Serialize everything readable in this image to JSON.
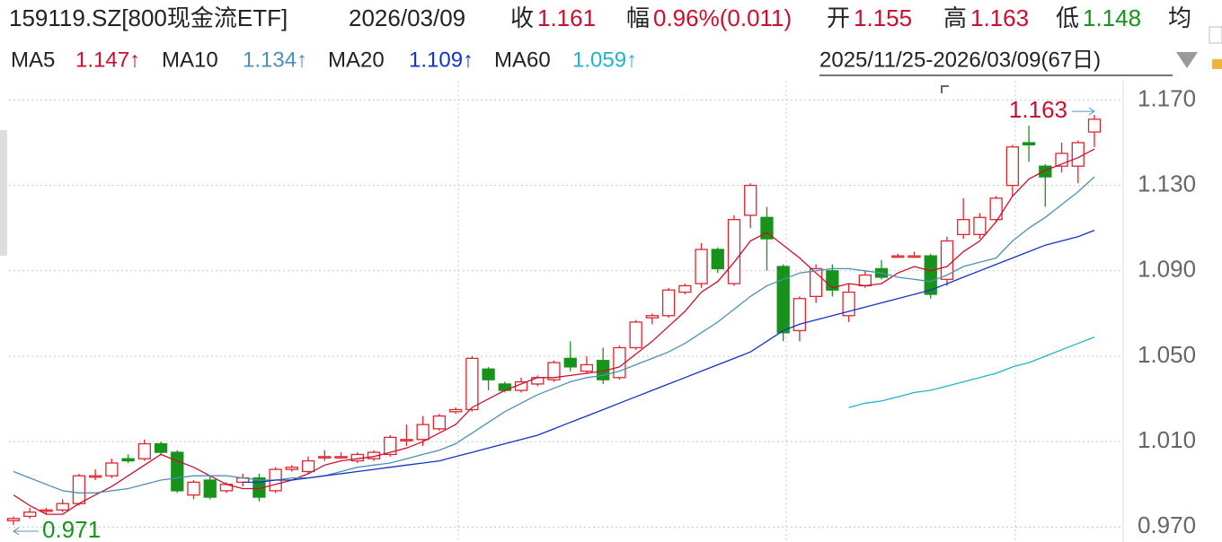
{
  "header": {
    "symbol": "159119.SZ[800现金流ETF]",
    "date": "2026/03/09",
    "close_label": "收",
    "close": "1.161",
    "change_label": "幅",
    "change": "0.96%(0.011)",
    "open_label": "开",
    "open": "1.155",
    "high_label": "高",
    "high": "1.163",
    "low_label": "低",
    "low": "1.148",
    "avg_label": "均",
    "range": "2025/11/25-2026/03/09(67日)"
  },
  "chart_data": {
    "type": "candlestick",
    "up_color": "#e0242c",
    "down_color": "#17931c",
    "open": [
      0.973,
      0.975,
      0.978,
      0.978,
      0.981,
      0.994,
      0.994,
      1.002,
      1.002,
      1.009,
      1.005,
      0.985,
      0.992,
      0.987,
      0.991,
      0.993,
      0.987,
      0.997,
      0.996,
      1.003,
      1.003,
      1.001,
      1.002,
      1.004,
      1.011,
      1.011,
      1.016,
      1.024,
      1.025,
      1.044,
      1.037,
      1.034,
      1.037,
      1.039,
      1.049,
      1.043,
      1.048,
      1.04,
      1.054,
      1.068,
      1.069,
      1.08,
      1.084,
      1.1,
      1.084,
      1.116,
      1.115,
      1.092,
      1.062,
      1.078,
      1.09,
      1.069,
      1.083,
      1.091,
      1.097,
      1.097,
      1.097,
      1.086,
      1.107,
      1.107,
      1.114,
      1.13,
      1.15,
      1.139,
      1.139,
      1.139,
      1.155
    ],
    "high": [
      0.975,
      0.979,
      0.979,
      0.983,
      0.995,
      0.997,
      1.002,
      1.004,
      1.011,
      1.01,
      1.006,
      0.992,
      0.994,
      0.991,
      0.995,
      0.995,
      0.998,
      0.999,
      1.003,
      1.006,
      1.005,
      1.005,
      1.006,
      1.013,
      1.018,
      1.022,
      1.023,
      1.026,
      1.05,
      1.045,
      1.038,
      1.04,
      1.041,
      1.048,
      1.057,
      1.05,
      1.054,
      1.055,
      1.067,
      1.07,
      1.082,
      1.084,
      1.103,
      1.101,
      1.116,
      1.131,
      1.12,
      1.093,
      1.078,
      1.093,
      1.093,
      1.084,
      1.09,
      1.095,
      1.098,
      1.099,
      1.098,
      1.106,
      1.124,
      1.117,
      1.125,
      1.149,
      1.158,
      1.14,
      1.15,
      1.151,
      1.163
    ],
    "low": [
      0.971,
      0.974,
      0.976,
      0.977,
      0.98,
      0.992,
      0.993,
      1.0,
      1.001,
      1.004,
      0.986,
      0.983,
      0.983,
      0.986,
      0.989,
      0.982,
      0.986,
      0.996,
      0.995,
      1.001,
      1.002,
      1.0,
      1.001,
      1.003,
      1.008,
      1.008,
      1.015,
      1.023,
      1.024,
      1.034,
      1.033,
      1.033,
      1.036,
      1.038,
      1.043,
      1.042,
      1.037,
      1.039,
      1.053,
      1.065,
      1.068,
      1.079,
      1.082,
      1.089,
      1.083,
      1.11,
      1.09,
      1.057,
      1.057,
      1.075,
      1.078,
      1.066,
      1.082,
      1.086,
      1.096,
      1.096,
      1.077,
      1.083,
      1.105,
      1.105,
      1.113,
      1.125,
      1.141,
      1.12,
      1.136,
      1.131,
      1.148
    ],
    "close": [
      0.974,
      0.977,
      0.978,
      0.981,
      0.994,
      0.994,
      1.0,
      1.001,
      1.009,
      1.005,
      0.987,
      0.991,
      0.984,
      0.99,
      0.993,
      0.984,
      0.997,
      0.998,
      1.001,
      1.003,
      1.003,
      1.004,
      1.005,
      1.012,
      1.011,
      1.018,
      1.022,
      1.025,
      1.049,
      1.039,
      1.034,
      1.038,
      1.04,
      1.047,
      1.045,
      1.046,
      1.039,
      1.054,
      1.066,
      1.069,
      1.081,
      1.083,
      1.1,
      1.091,
      1.114,
      1.13,
      1.105,
      1.061,
      1.077,
      1.091,
      1.081,
      1.08,
      1.088,
      1.087,
      1.097,
      1.097,
      1.079,
      1.104,
      1.114,
      1.115,
      1.124,
      1.148,
      1.149,
      1.134,
      1.145,
      1.15,
      1.161
    ],
    "series": [
      {
        "name": "MA5",
        "legend_label": "1.147↑",
        "color": "#c8102e",
        "values": [
          0.985,
          0.98,
          0.976,
          0.976,
          0.981,
          0.985,
          0.989,
          0.994,
          0.999,
          1.004,
          1.001,
          0.998,
          0.994,
          0.99,
          0.988,
          0.988,
          0.99,
          0.992,
          0.995,
          0.999,
          1.001,
          1.002,
          1.003,
          1.005,
          1.007,
          1.01,
          1.014,
          1.018,
          1.026,
          1.03,
          1.034,
          1.037,
          1.04,
          1.04,
          1.041,
          1.042,
          1.043,
          1.045,
          1.051,
          1.057,
          1.064,
          1.071,
          1.08,
          1.085,
          1.094,
          1.104,
          1.108,
          1.102,
          1.096,
          1.089,
          1.082,
          1.084,
          1.083,
          1.084,
          1.089,
          1.092,
          1.09,
          1.092,
          1.099,
          1.104,
          1.113,
          1.125,
          1.133,
          1.137,
          1.14,
          1.143,
          1.147
        ]
      },
      {
        "name": "MA10",
        "legend_label": "1.134↑",
        "color": "#4f8fb5",
        "values": [
          0.996,
          0.993,
          0.99,
          0.987,
          0.986,
          0.986,
          0.987,
          0.988,
          0.99,
          0.992,
          0.993,
          0.994,
          0.994,
          0.994,
          0.993,
          0.992,
          0.992,
          0.993,
          0.993,
          0.994,
          0.996,
          0.998,
          0.999,
          1.0,
          1.002,
          1.004,
          1.006,
          1.009,
          1.014,
          1.019,
          1.024,
          1.028,
          1.032,
          1.035,
          1.038,
          1.04,
          1.041,
          1.043,
          1.046,
          1.049,
          1.052,
          1.056,
          1.061,
          1.066,
          1.072,
          1.078,
          1.083,
          1.086,
          1.089,
          1.09,
          1.091,
          1.091,
          1.09,
          1.089,
          1.087,
          1.086,
          1.085,
          1.088,
          1.092,
          1.094,
          1.096,
          1.104,
          1.11,
          1.115,
          1.121,
          1.127,
          1.134
        ]
      },
      {
        "name": "MA20",
        "legend_label": "1.109↑",
        "color": "#1432c8",
        "values": [
          null,
          null,
          null,
          null,
          null,
          null,
          null,
          null,
          null,
          null,
          null,
          null,
          null,
          null,
          0.991,
          0.991,
          0.992,
          0.992,
          0.993,
          0.994,
          0.995,
          0.996,
          0.997,
          0.998,
          0.999,
          1.0,
          1.001,
          1.003,
          1.005,
          1.007,
          1.009,
          1.011,
          1.013,
          1.016,
          1.019,
          1.022,
          1.025,
          1.028,
          1.031,
          1.034,
          1.037,
          1.04,
          1.043,
          1.046,
          1.049,
          1.052,
          1.057,
          1.062,
          1.065,
          1.067,
          1.069,
          1.071,
          1.073,
          1.075,
          1.077,
          1.079,
          1.081,
          1.084,
          1.087,
          1.09,
          1.093,
          1.096,
          1.099,
          1.102,
          1.104,
          1.106,
          1.109
        ]
      },
      {
        "name": "MA60",
        "legend_label": "1.059↑",
        "color": "#1fb3cc",
        "values": [
          null,
          null,
          null,
          null,
          null,
          null,
          null,
          null,
          null,
          null,
          null,
          null,
          null,
          null,
          null,
          null,
          null,
          null,
          null,
          null,
          null,
          null,
          null,
          null,
          null,
          null,
          null,
          null,
          null,
          null,
          null,
          null,
          null,
          null,
          null,
          null,
          null,
          null,
          null,
          null,
          null,
          null,
          null,
          null,
          null,
          null,
          null,
          null,
          null,
          null,
          null,
          1.026,
          1.028,
          1.029,
          1.031,
          1.033,
          1.034,
          1.036,
          1.038,
          1.04,
          1.042,
          1.045,
          1.047,
          1.05,
          1.053,
          1.056,
          1.059
        ]
      }
    ],
    "annotations": [
      {
        "text": "1.163",
        "color": "#c8102e"
      },
      {
        "text": "0.971",
        "color": "#17931c"
      }
    ],
    "ylim": [
      0.963,
      1.179
    ],
    "yticks": [
      {
        "value": 1.17,
        "label": "1.170"
      },
      {
        "value": 1.13,
        "label": "1.130"
      },
      {
        "value": 1.09,
        "label": "1.090"
      },
      {
        "value": 1.05,
        "label": "1.050"
      },
      {
        "value": 1.01,
        "label": "1.010"
      },
      {
        "value": 0.97,
        "label": "0.970"
      }
    ],
    "grid": true
  }
}
